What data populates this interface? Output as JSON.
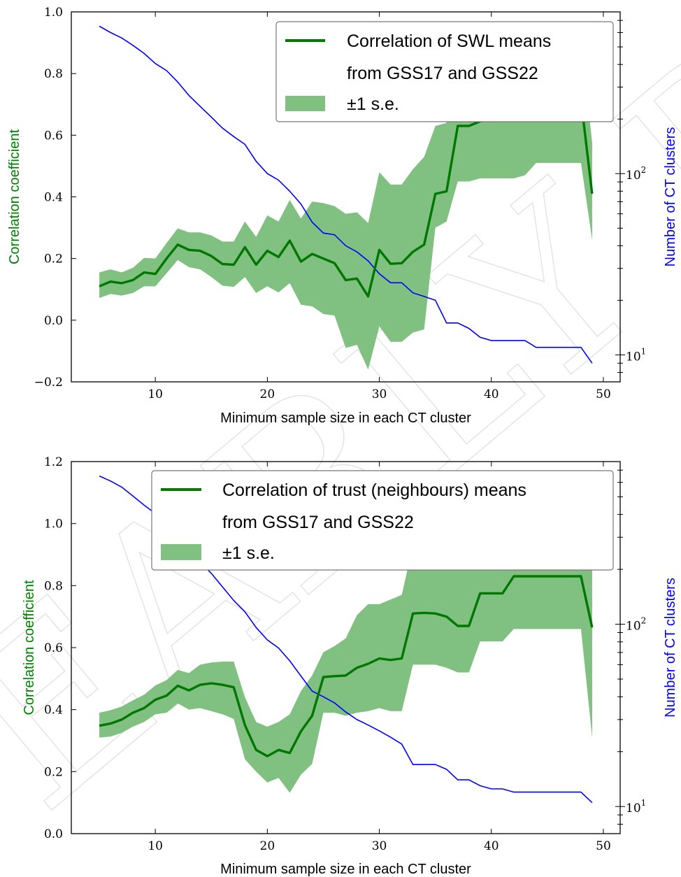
{
  "chart_data": [
    {
      "type": "line",
      "xlabel": "Minimum sample size in each CT cluster",
      "ylabel": "Correlation coefficient",
      "y2label": "Number of CT clusters",
      "xlim": [
        2.5,
        51.5
      ],
      "ylim": [
        -0.2,
        1.0
      ],
      "y2lim": [
        7.1,
        780
      ],
      "y2scale": "log",
      "xticks": [
        "10",
        "20",
        "30",
        "40",
        "50"
      ],
      "yticks": [
        "−0.2",
        "0.0",
        "0.2",
        "0.4",
        "0.6",
        "0.8",
        "1.0"
      ],
      "y2ticks": [
        "10",
        "10"
      ],
      "y2tick_exponents": [
        "1",
        "2"
      ],
      "legend": {
        "position": "top-right",
        "line_label": [
          "Correlation of SWL means",
          "from GSS17 and GSS22"
        ],
        "band_label": "±1 s.e."
      },
      "x": [
        5,
        6,
        7,
        8,
        9,
        10,
        11,
        12,
        13,
        14,
        15,
        16,
        17,
        18,
        19,
        20,
        21,
        22,
        23,
        24,
        25,
        26,
        27,
        28,
        29,
        30,
        31,
        32,
        33,
        34,
        35,
        36,
        37,
        38,
        39,
        40,
        41,
        42,
        43,
        44,
        45,
        46,
        47,
        48,
        49
      ],
      "series": [
        {
          "role": "correlation",
          "color": "#007700",
          "values": [
            0.11,
            0.125,
            0.12,
            0.13,
            0.155,
            0.15,
            0.2,
            0.245,
            0.228,
            0.225,
            0.208,
            0.182,
            0.18,
            0.237,
            0.18,
            0.225,
            0.205,
            0.258,
            0.19,
            0.215,
            0.2,
            0.185,
            0.13,
            0.135,
            0.077,
            0.228,
            0.183,
            0.185,
            0.222,
            0.245,
            0.41,
            0.418,
            0.63,
            0.63,
            0.645,
            0.65,
            0.65,
            0.65,
            0.65,
            0.68,
            0.715,
            0.715,
            0.715,
            0.715,
            0.41
          ],
          "lower": [
            0.072,
            0.085,
            0.08,
            0.088,
            0.11,
            0.11,
            0.152,
            0.195,
            0.172,
            0.165,
            0.14,
            0.112,
            0.108,
            0.14,
            0.088,
            0.11,
            0.09,
            0.12,
            0.05,
            0.045,
            0.02,
            0.015,
            -0.09,
            -0.08,
            -0.16,
            -0.02,
            -0.07,
            -0.07,
            -0.04,
            -0.03,
            0.3,
            0.32,
            0.45,
            0.45,
            0.46,
            0.46,
            0.46,
            0.46,
            0.47,
            0.51,
            0.51,
            0.51,
            0.51,
            0.51,
            0.26
          ],
          "upper": [
            0.155,
            0.165,
            0.155,
            0.17,
            0.202,
            0.2,
            0.25,
            0.298,
            0.285,
            0.285,
            0.275,
            0.255,
            0.255,
            0.32,
            0.27,
            0.34,
            0.32,
            0.39,
            0.33,
            0.385,
            0.38,
            0.37,
            0.345,
            0.35,
            0.315,
            0.48,
            0.44,
            0.44,
            0.49,
            0.53,
            0.63,
            0.64,
            0.8,
            0.8,
            0.82,
            0.825,
            0.825,
            0.825,
            0.84,
            0.86,
            0.915,
            0.915,
            0.915,
            0.915,
            0.575
          ]
        },
        {
          "role": "clusters",
          "axis": "y2",
          "color": "#0000ff",
          "values": [
            650,
            600,
            560,
            510,
            460,
            405,
            370,
            320,
            270,
            235,
            205,
            178,
            160,
            145,
            117,
            100,
            92,
            80,
            68,
            54,
            47,
            46,
            40,
            37,
            33,
            28,
            25,
            25,
            22,
            21,
            20,
            15,
            15,
            14,
            12.5,
            12,
            12,
            12,
            12,
            11,
            11,
            11,
            11,
            11,
            9
          ]
        }
      ]
    },
    {
      "type": "line",
      "xlabel": "Minimum sample size in each CT cluster",
      "ylabel": "Correlation coefficient",
      "y2label": "Number of CT clusters",
      "xlim": [
        2.5,
        51.5
      ],
      "ylim": [
        0.0,
        1.2
      ],
      "y2lim": [
        7.1,
        780
      ],
      "y2scale": "log",
      "xticks": [
        "10",
        "20",
        "30",
        "40",
        "50"
      ],
      "yticks": [
        "0.0",
        "0.2",
        "0.4",
        "0.6",
        "0.8",
        "1.0",
        "1.2"
      ],
      "y2ticks": [
        "10",
        "10"
      ],
      "y2tick_exponents": [
        "1",
        "2"
      ],
      "legend": {
        "position": "top-right",
        "line_label": [
          "Correlation of trust (neighbours) means",
          "from GSS17 and GSS22"
        ],
        "band_label": "±1 s.e."
      },
      "x": [
        5,
        6,
        7,
        8,
        9,
        10,
        11,
        12,
        13,
        14,
        15,
        16,
        17,
        18,
        19,
        20,
        21,
        22,
        23,
        24,
        25,
        26,
        27,
        28,
        29,
        30,
        31,
        32,
        33,
        34,
        35,
        36,
        37,
        38,
        39,
        40,
        41,
        42,
        43,
        44,
        45,
        46,
        47,
        48,
        49
      ],
      "series": [
        {
          "role": "correlation",
          "color": "#007700",
          "values": [
            0.348,
            0.355,
            0.368,
            0.39,
            0.405,
            0.432,
            0.445,
            0.477,
            0.462,
            0.48,
            0.485,
            0.48,
            0.472,
            0.35,
            0.27,
            0.25,
            0.27,
            0.26,
            0.33,
            0.38,
            0.505,
            0.508,
            0.51,
            0.535,
            0.548,
            0.565,
            0.56,
            0.565,
            0.71,
            0.712,
            0.71,
            0.7,
            0.67,
            0.67,
            0.775,
            0.775,
            0.775,
            0.83,
            0.83,
            0.83,
            0.83,
            0.83,
            0.83,
            0.83,
            0.665
          ],
          "lower": [
            0.31,
            0.313,
            0.325,
            0.345,
            0.36,
            0.385,
            0.39,
            0.42,
            0.4,
            0.405,
            0.395,
            0.385,
            0.37,
            0.24,
            0.2,
            0.165,
            0.18,
            0.132,
            0.19,
            0.225,
            0.39,
            0.39,
            0.38,
            0.39,
            0.395,
            0.405,
            0.395,
            0.395,
            0.545,
            0.545,
            0.545,
            0.535,
            0.52,
            0.52,
            0.62,
            0.62,
            0.62,
            0.66,
            0.66,
            0.66,
            0.66,
            0.66,
            0.66,
            0.66,
            0.31
          ],
          "upper": [
            0.39,
            0.398,
            0.41,
            0.43,
            0.448,
            0.478,
            0.495,
            0.528,
            0.518,
            0.545,
            0.552,
            0.555,
            0.555,
            0.44,
            0.36,
            0.345,
            0.36,
            0.385,
            0.46,
            0.51,
            0.585,
            0.605,
            0.63,
            0.705,
            0.74,
            0.74,
            0.755,
            0.77,
            0.93,
            0.93,
            0.925,
            0.93,
            0.89,
            0.895,
            1.0,
            1.0,
            1.0,
            1.01,
            1.01,
            1.01,
            1.01,
            1.01,
            1.01,
            1.01,
            0.965
          ]
        },
        {
          "role": "clusters",
          "axis": "y2",
          "color": "#0000ff",
          "values": [
            650,
            610,
            565,
            505,
            450,
            405,
            355,
            300,
            255,
            220,
            190,
            160,
            135,
            117,
            96,
            82,
            74,
            63,
            52,
            43,
            40,
            37,
            33,
            30,
            28,
            26,
            24,
            22,
            17,
            17,
            17,
            16,
            14,
            14,
            13,
            12.5,
            12.5,
            12,
            12,
            12,
            12,
            12,
            12,
            12,
            10.5
          ]
        }
      ]
    }
  ]
}
